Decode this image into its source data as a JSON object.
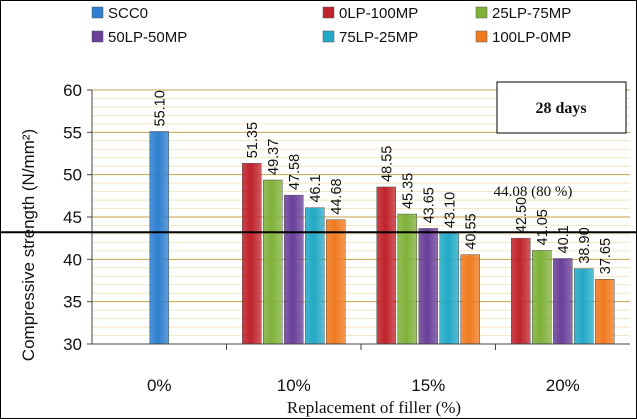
{
  "chart_data": {
    "type": "bar",
    "title": "",
    "xlabel": "Replacement of filler (%)",
    "ylabel": "Compressive strength (N/mm²)",
    "ylim": [
      30,
      60
    ],
    "yticks": [
      30,
      35,
      40,
      45,
      50,
      55,
      60
    ],
    "categories": [
      "0%",
      "10%",
      "15%",
      "20%"
    ],
    "series": [
      {
        "name": "SCC0",
        "color": "#2f7fd0",
        "values": [
          55.1,
          null,
          null,
          null
        ],
        "labels": [
          "55.10",
          null,
          null,
          null
        ]
      },
      {
        "name": "0LP-100MP",
        "color": "#c0232b",
        "values": [
          null,
          51.35,
          48.55,
          42.5
        ],
        "labels": [
          null,
          "51.35",
          "48.55",
          "42.50"
        ]
      },
      {
        "name": "25LP-75MP",
        "color": "#7fb13a",
        "values": [
          null,
          49.37,
          45.35,
          41.05
        ],
        "labels": [
          null,
          "49.37",
          "45.35",
          "41.05"
        ]
      },
      {
        "name": "50LP-50MP",
        "color": "#6a3f9a",
        "values": [
          null,
          47.58,
          43.65,
          40.1
        ],
        "labels": [
          null,
          "47.58",
          "43.65",
          "40.1"
        ]
      },
      {
        "name": "75LP-25MP",
        "color": "#22a9c7",
        "values": [
          null,
          46.1,
          43.1,
          38.9
        ],
        "labels": [
          null,
          "46.1",
          "43.10",
          "38.90"
        ]
      },
      {
        "name": "100LP-0MP",
        "color": "#ef7a1f",
        "values": [
          null,
          44.68,
          40.55,
          37.65
        ],
        "labels": [
          null,
          "44.68",
          "40.55",
          "37.65"
        ]
      }
    ],
    "reference_line": {
      "value": 44.08,
      "label": "44.08 (80 %)"
    },
    "annotation_box": "28 days",
    "grid": true,
    "legend": "top"
  }
}
